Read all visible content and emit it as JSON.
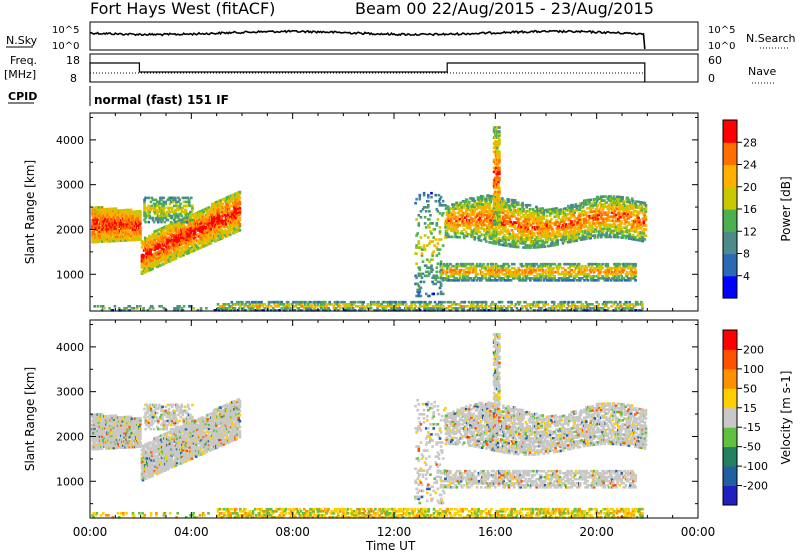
{
  "header": {
    "station": "Fort Hays West (fitACF)",
    "beam_date": "Beam 00  22/Aug/2015 - 23/Aug/2015",
    "mode": "normal (fast) 151 IF"
  },
  "strip_labels": {
    "nsky": "N.Sky",
    "nsearch": "N.Search",
    "freq": "Freq.",
    "freq_unit": "[MHz]",
    "nave": "Nave",
    "cpid": "CPID",
    "noise_tick_top": "10^5",
    "noise_tick_bottom": "10^0",
    "freq_tick_top": "18",
    "freq_tick_bottom": "8",
    "nave_tick_top": "60",
    "nave_tick_bottom": "0"
  },
  "chart_data": [
    {
      "type": "heatmap",
      "title": "Power",
      "ylabel": "Slant Range [km]",
      "xlabel": "Time UT",
      "colorbar_label": "Power [dB]",
      "colorbar_ticks": [
        "4",
        "8",
        "12",
        "16",
        "20",
        "24",
        "28"
      ],
      "colorbar_colors": [
        "#0000ff",
        "#2a6ab5",
        "#4d8a8a",
        "#4cb050",
        "#c8c800",
        "#ffb000",
        "#ff7000",
        "#ff0000"
      ],
      "x_ticks": [
        "00:00",
        "04:00",
        "08:00",
        "12:00",
        "16:00",
        "20:00",
        "00:00"
      ],
      "y_ticks": [
        "1000",
        "2000",
        "3000",
        "4000"
      ],
      "xlim": [
        0,
        24
      ],
      "ylim": [
        180,
        4600
      ]
    },
    {
      "type": "heatmap",
      "title": "Velocity",
      "ylabel": "Slant Range [km]",
      "xlabel": "Time UT",
      "colorbar_label": "Velocity [m s-1]",
      "colorbar_ticks": [
        "200",
        "100",
        "50",
        "15",
        "-15",
        "-50",
        "-100",
        "-200"
      ],
      "colorbar_colors": [
        "#2020c0",
        "#2060a0",
        "#208060",
        "#60c040",
        "#c8c8c8",
        "#ffd000",
        "#ff9000",
        "#ff5000",
        "#ff0000"
      ],
      "x_ticks": [
        "00:00",
        "04:00",
        "08:00",
        "12:00",
        "16:00",
        "20:00",
        "00:00"
      ],
      "y_ticks": [
        "1000",
        "2000",
        "3000",
        "4000"
      ],
      "xlim": [
        0,
        24
      ],
      "ylim": [
        180,
        4600
      ]
    }
  ],
  "xlabel": "Time UT"
}
